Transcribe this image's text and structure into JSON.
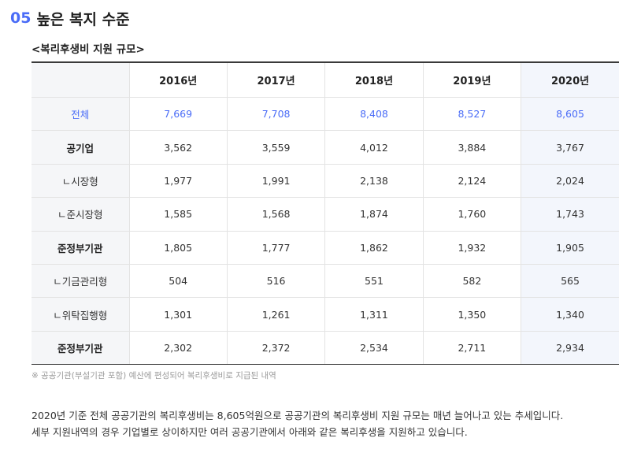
{
  "section": {
    "number": "05",
    "title": "높은 복지 수준"
  },
  "table": {
    "caption": "<복리후생비 지원 규모>",
    "columns": [
      "",
      "2016년",
      "2017년",
      "2018년",
      "2019년",
      "2020년"
    ],
    "rows": [
      {
        "label": "전체",
        "values": [
          "7,669",
          "7,708",
          "8,408",
          "8,527",
          "8,605"
        ],
        "style": "total"
      },
      {
        "label": "공기업",
        "values": [
          "3,562",
          "3,559",
          "4,012",
          "3,884",
          "3,767"
        ],
        "style": "bold"
      },
      {
        "label": "ㄴ시장형",
        "values": [
          "1,977",
          "1,991",
          "2,138",
          "2,124",
          "2,024"
        ],
        "style": "sub"
      },
      {
        "label": "ㄴ준시장형",
        "values": [
          "1,585",
          "1,568",
          "1,874",
          "1,760",
          "1,743"
        ],
        "style": "sub"
      },
      {
        "label": "준정부기관",
        "values": [
          "1,805",
          "1,777",
          "1,862",
          "1,932",
          "1,905"
        ],
        "style": "bold"
      },
      {
        "label": "ㄴ기금관리형",
        "values": [
          "504",
          "516",
          "551",
          "582",
          "565"
        ],
        "style": "sub"
      },
      {
        "label": "ㄴ위탁집행형",
        "values": [
          "1,301",
          "1,261",
          "1,311",
          "1,350",
          "1,340"
        ],
        "style": "sub"
      },
      {
        "label": "준정부기관",
        "values": [
          "2,302",
          "2,372",
          "2,534",
          "2,711",
          "2,934"
        ],
        "style": "bold"
      }
    ]
  },
  "footnote": "※ 공공기관(부설기관 포함) 예산에 편성되어 복리후생비로 지급된 내역",
  "paragraph": [
    "2020년 기준 전체 공공기관의 복리후생비는 8,605억원으로 공공기관의 복리후생비 지원 규모는 매년 늘어나고 있는 추세입니다.",
    "세부 지원내역의 경우 기업별로 상이하지만 여러 공공기관에서 아래와 같은 복리후생을 지원하고 있습니다."
  ],
  "colors": {
    "accent": "#4a6cf7"
  }
}
